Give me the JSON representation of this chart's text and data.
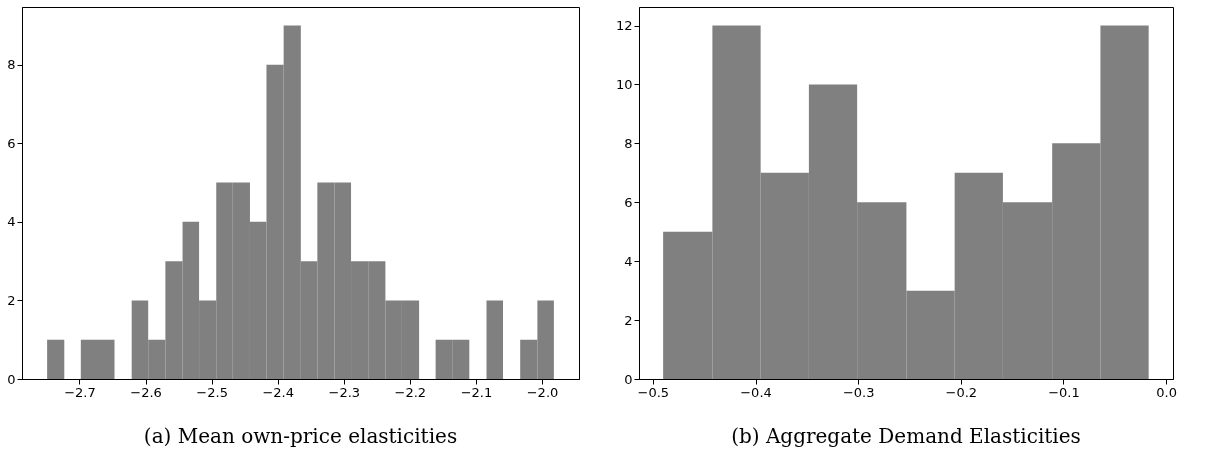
{
  "chart_data": [
    {
      "type": "histogram",
      "title": "(a) Mean own-price elasticities",
      "color": "#808080",
      "grid": false,
      "bins": [
        -2.749,
        -2.723,
        -2.698,
        -2.672,
        -2.647,
        -2.621,
        -2.596,
        -2.57,
        -2.544,
        -2.519,
        -2.493,
        -2.468,
        -2.442,
        -2.417,
        -2.391,
        -2.365,
        -2.34,
        -2.314,
        -2.289,
        -2.263,
        -2.237,
        -2.212,
        -2.186,
        -2.161,
        -2.135,
        -2.11,
        -2.084,
        -2.059,
        -2.033,
        -2.007,
        -1.982
      ],
      "values": [
        1,
        0,
        1,
        1,
        0,
        2,
        1,
        3,
        4,
        2,
        5,
        5,
        4,
        8,
        9,
        3,
        5,
        5,
        3,
        3,
        2,
        2,
        0,
        1,
        1,
        0,
        2,
        0,
        1,
        2
      ],
      "xlim": [
        -2.787,
        -1.944
      ],
      "xticks": [
        {
          "value": -2.7,
          "label": "−2.7"
        },
        {
          "value": -2.6,
          "label": "−2.6"
        },
        {
          "value": -2.5,
          "label": "−2.5"
        },
        {
          "value": -2.4,
          "label": "−2.4"
        },
        {
          "value": -2.3,
          "label": "−2.3"
        },
        {
          "value": -2.2,
          "label": "−2.2"
        },
        {
          "value": -2.1,
          "label": "−2.1"
        },
        {
          "value": -2.0,
          "label": "−2.0"
        }
      ],
      "ylim": [
        0,
        9.47
      ],
      "yticks": [
        0,
        2,
        4,
        6,
        8
      ]
    },
    {
      "type": "histogram",
      "title": "(b) Aggregate Demand Elasticities",
      "color": "#808080",
      "grid": false,
      "bins": [
        -0.49,
        -0.442,
        -0.395,
        -0.348,
        -0.301,
        -0.253,
        -0.206,
        -0.159,
        -0.111,
        -0.064,
        -0.017
      ],
      "values": [
        5,
        12,
        7,
        10,
        6,
        3,
        7,
        6,
        8,
        12
      ],
      "xlim": [
        -0.5135,
        0.0067
      ],
      "xticks": [
        {
          "value": -0.5,
          "label": "−0.5"
        },
        {
          "value": -0.4,
          "label": "−0.4"
        },
        {
          "value": -0.3,
          "label": "−0.3"
        },
        {
          "value": -0.2,
          "label": "−0.2"
        },
        {
          "value": -0.1,
          "label": "−0.1"
        },
        {
          "value": 0,
          "label": "0.0"
        }
      ],
      "ylim": [
        0,
        12.63
      ],
      "yticks": [
        0,
        2,
        4,
        6,
        8,
        10,
        12
      ]
    }
  ]
}
